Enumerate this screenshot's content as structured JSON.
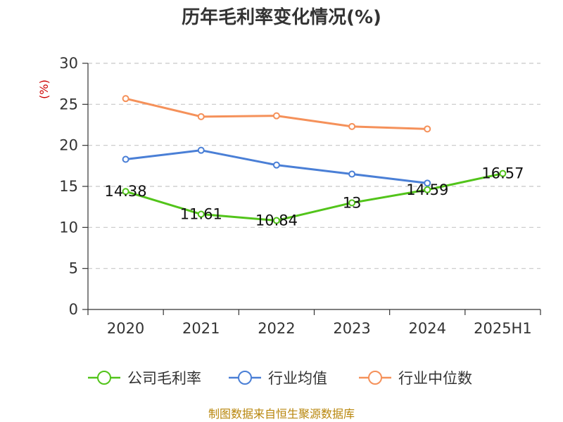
{
  "chart_data": {
    "type": "line",
    "title": "历年毛利率变化情况(%)",
    "ylabel": "(%)",
    "categories": [
      "2020",
      "2021",
      "2022",
      "2023",
      "2024",
      "2025H1"
    ],
    "ylim": [
      0,
      30
    ],
    "yticks": [
      "0",
      "5",
      "10",
      "15",
      "20",
      "25",
      "30"
    ],
    "grid": true,
    "legend_position": "bottom",
    "series": [
      {
        "name": "公司毛利率",
        "values": [
          14.38,
          11.61,
          10.84,
          13,
          14.59,
          16.57
        ],
        "labels": [
          "14.38",
          "11.61",
          "10.84",
          "13",
          "14.59",
          "16.57"
        ],
        "color": "#52c41a"
      },
      {
        "name": "行业均值",
        "values": [
          18.3,
          19.4,
          17.6,
          16.5,
          15.4,
          null
        ],
        "color": "#4a7fd6"
      },
      {
        "name": "行业中位数",
        "values": [
          25.7,
          23.5,
          23.6,
          22.3,
          22.0,
          null
        ],
        "color": "#f5915a"
      }
    ],
    "source": "制图数据来自恒生聚源数据库"
  }
}
